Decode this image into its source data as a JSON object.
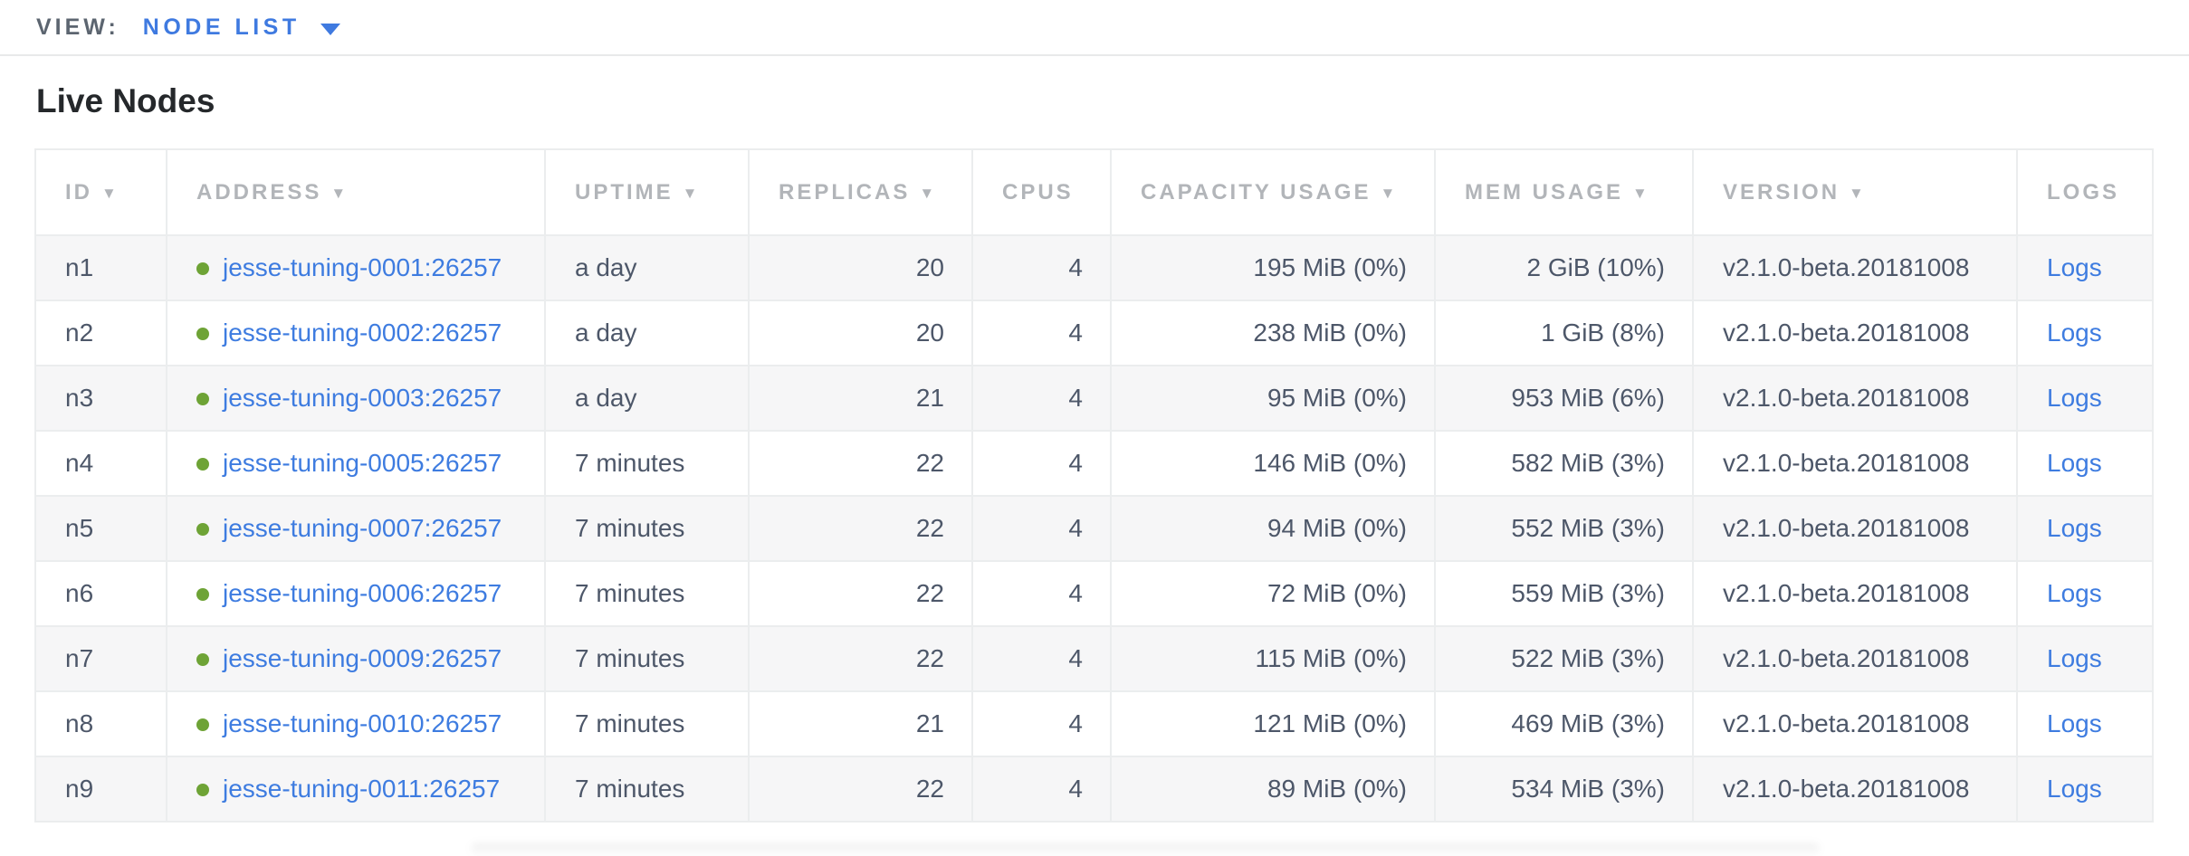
{
  "view_bar": {
    "label": "VIEW:",
    "selected_view": "NODE LIST"
  },
  "page": {
    "title": "Live Nodes"
  },
  "icons": {
    "sort_descending": "▼",
    "view_caret_down": "▼",
    "live_status_dot": "●"
  },
  "colors": {
    "link_blue": "#3e7ce0",
    "view_switcher_blue": "#3f7ae0",
    "live_dot_green": "#6ea336",
    "header_gray": "#b2b5b9",
    "cell_text": "#4d5769",
    "stripe_bg": "#f6f6f7",
    "border": "#ebedee"
  },
  "table": {
    "columns": [
      {
        "key": "id",
        "label": "ID",
        "sortable": true
      },
      {
        "key": "address",
        "label": "ADDRESS",
        "sortable": true
      },
      {
        "key": "uptime",
        "label": "UPTIME",
        "sortable": true
      },
      {
        "key": "replicas",
        "label": "REPLICAS",
        "sortable": true
      },
      {
        "key": "cpus",
        "label": "CPUS",
        "sortable": false
      },
      {
        "key": "capacity",
        "label": "CAPACITY USAGE",
        "sortable": true
      },
      {
        "key": "mem",
        "label": "MEM USAGE",
        "sortable": true
      },
      {
        "key": "version",
        "label": "VERSION",
        "sortable": true
      },
      {
        "key": "logs",
        "label": "LOGS",
        "sortable": false
      }
    ],
    "rows": [
      {
        "id": "n1",
        "status": "live",
        "address": "jesse-tuning-0001:26257",
        "uptime": "a day",
        "replicas": "20",
        "cpus": "4",
        "capacity": "195 MiB (0%)",
        "mem": "2 GiB (10%)",
        "version": "v2.1.0-beta.20181008",
        "logs": "Logs"
      },
      {
        "id": "n2",
        "status": "live",
        "address": "jesse-tuning-0002:26257",
        "uptime": "a day",
        "replicas": "20",
        "cpus": "4",
        "capacity": "238 MiB (0%)",
        "mem": "1 GiB (8%)",
        "version": "v2.1.0-beta.20181008",
        "logs": "Logs"
      },
      {
        "id": "n3",
        "status": "live",
        "address": "jesse-tuning-0003:26257",
        "uptime": "a day",
        "replicas": "21",
        "cpus": "4",
        "capacity": "95 MiB (0%)",
        "mem": "953 MiB (6%)",
        "version": "v2.1.0-beta.20181008",
        "logs": "Logs"
      },
      {
        "id": "n4",
        "status": "live",
        "address": "jesse-tuning-0005:26257",
        "uptime": "7 minutes",
        "replicas": "22",
        "cpus": "4",
        "capacity": "146 MiB (0%)",
        "mem": "582 MiB (3%)",
        "version": "v2.1.0-beta.20181008",
        "logs": "Logs"
      },
      {
        "id": "n5",
        "status": "live",
        "address": "jesse-tuning-0007:26257",
        "uptime": "7 minutes",
        "replicas": "22",
        "cpus": "4",
        "capacity": "94 MiB (0%)",
        "mem": "552 MiB (3%)",
        "version": "v2.1.0-beta.20181008",
        "logs": "Logs"
      },
      {
        "id": "n6",
        "status": "live",
        "address": "jesse-tuning-0006:26257",
        "uptime": "7 minutes",
        "replicas": "22",
        "cpus": "4",
        "capacity": "72 MiB (0%)",
        "mem": "559 MiB (3%)",
        "version": "v2.1.0-beta.20181008",
        "logs": "Logs"
      },
      {
        "id": "n7",
        "status": "live",
        "address": "jesse-tuning-0009:26257",
        "uptime": "7 minutes",
        "replicas": "22",
        "cpus": "4",
        "capacity": "115 MiB (0%)",
        "mem": "522 MiB (3%)",
        "version": "v2.1.0-beta.20181008",
        "logs": "Logs"
      },
      {
        "id": "n8",
        "status": "live",
        "address": "jesse-tuning-0010:26257",
        "uptime": "7 minutes",
        "replicas": "21",
        "cpus": "4",
        "capacity": "121 MiB (0%)",
        "mem": "469 MiB (3%)",
        "version": "v2.1.0-beta.20181008",
        "logs": "Logs"
      },
      {
        "id": "n9",
        "status": "live",
        "address": "jesse-tuning-0011:26257",
        "uptime": "7 minutes",
        "replicas": "22",
        "cpus": "4",
        "capacity": "89 MiB (0%)",
        "mem": "534 MiB (3%)",
        "version": "v2.1.0-beta.20181008",
        "logs": "Logs"
      }
    ]
  }
}
